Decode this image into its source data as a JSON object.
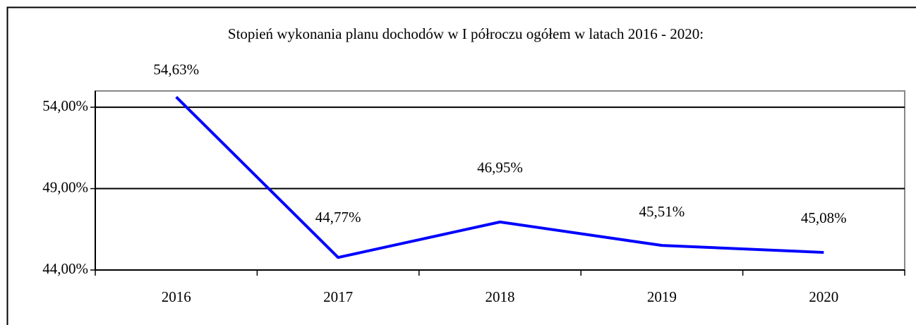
{
  "chart_data": {
    "type": "line",
    "title": "Stopień wykonania planu dochodów w I półroczu ogółem w latach 2016 - 2020:",
    "categories": [
      "2016",
      "2017",
      "2018",
      "2019",
      "2020"
    ],
    "values": [
      54.63,
      44.77,
      46.95,
      45.51,
      45.08
    ],
    "value_labels": [
      "54,63%",
      "44,77%",
      "46,95%",
      "45,51%",
      "45,08%"
    ],
    "color": "#0000ff",
    "ylim": [
      44,
      55
    ],
    "yticks": [
      {
        "value": 44,
        "label": "44,00%"
      },
      {
        "value": 49,
        "label": "49,00%"
      },
      {
        "value": 54,
        "label": "54,00%"
      }
    ],
    "grid": true
  }
}
